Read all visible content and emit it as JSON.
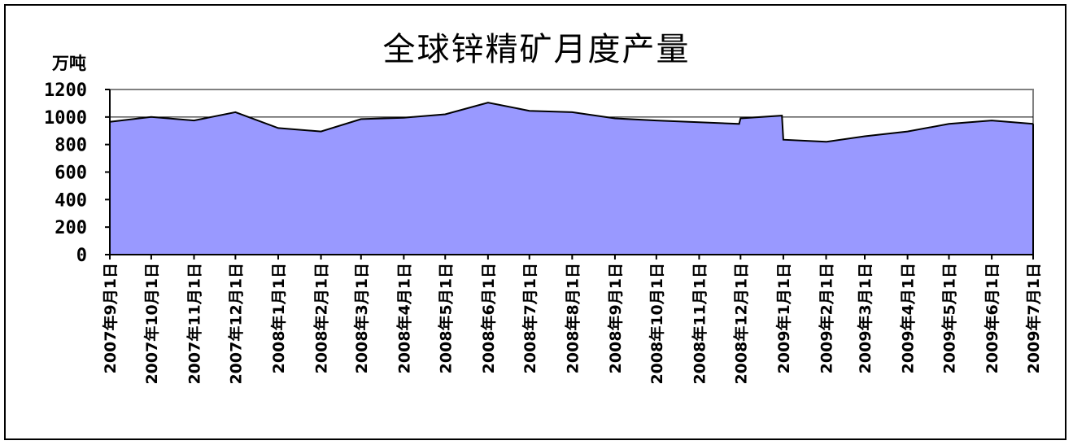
{
  "chart_data": {
    "type": "area",
    "title": "全球锌精矿月度产量",
    "ylabel": "万吨",
    "xlabel": "",
    "ylim": [
      0,
      1200
    ],
    "yticks": [
      0,
      200,
      400,
      600,
      800,
      1000,
      1200
    ],
    "grid": false,
    "legend": "none",
    "reference_line": 1000,
    "categories": [
      "2007年9月1日",
      "2007年10月1日",
      "2007年11月1日",
      "2007年12月1日",
      "2008年1月1日",
      "2008年2月1日",
      "2008年3月1日",
      "2008年4月1日",
      "2008年5月1日",
      "2008年6月1日",
      "2008年7月1日",
      "2008年8月1日",
      "2008年9月1日",
      "2008年10月1日",
      "2008年11月1日",
      "2008年12月1日",
      "2009年1月1日",
      "2009年2月1日",
      "2009年3月1日",
      "2009年4月1日",
      "2009年5月1日",
      "2009年6月1日",
      "2009年7月1日"
    ],
    "series": [
      {
        "x": [
          "2007-09-01",
          "2007-10-01",
          "2007-11-01",
          "2007-12-01",
          "2008-01-01",
          "2008-02-01",
          "2008-03-01",
          "2008-04-01",
          "2008-05-01",
          "2008-06-01",
          "2008-07-01",
          "2008-08-01",
          "2008-09-01",
          "2008-10-01",
          "2008-11-30",
          "2008-12-01",
          "2008-12-31",
          "2009-01-01",
          "2009-02-01",
          "2009-03-01",
          "2009-04-01",
          "2009-05-01",
          "2009-06-01",
          "2009-07-01"
        ],
        "values": [
          965,
          1000,
          975,
          1035,
          920,
          895,
          985,
          995,
          1020,
          1105,
          1045,
          1035,
          990,
          975,
          950,
          990,
          1010,
          835,
          820,
          860,
          895,
          950,
          975,
          950
        ],
        "color": "#9999ff",
        "line_color": "#000000"
      }
    ]
  }
}
